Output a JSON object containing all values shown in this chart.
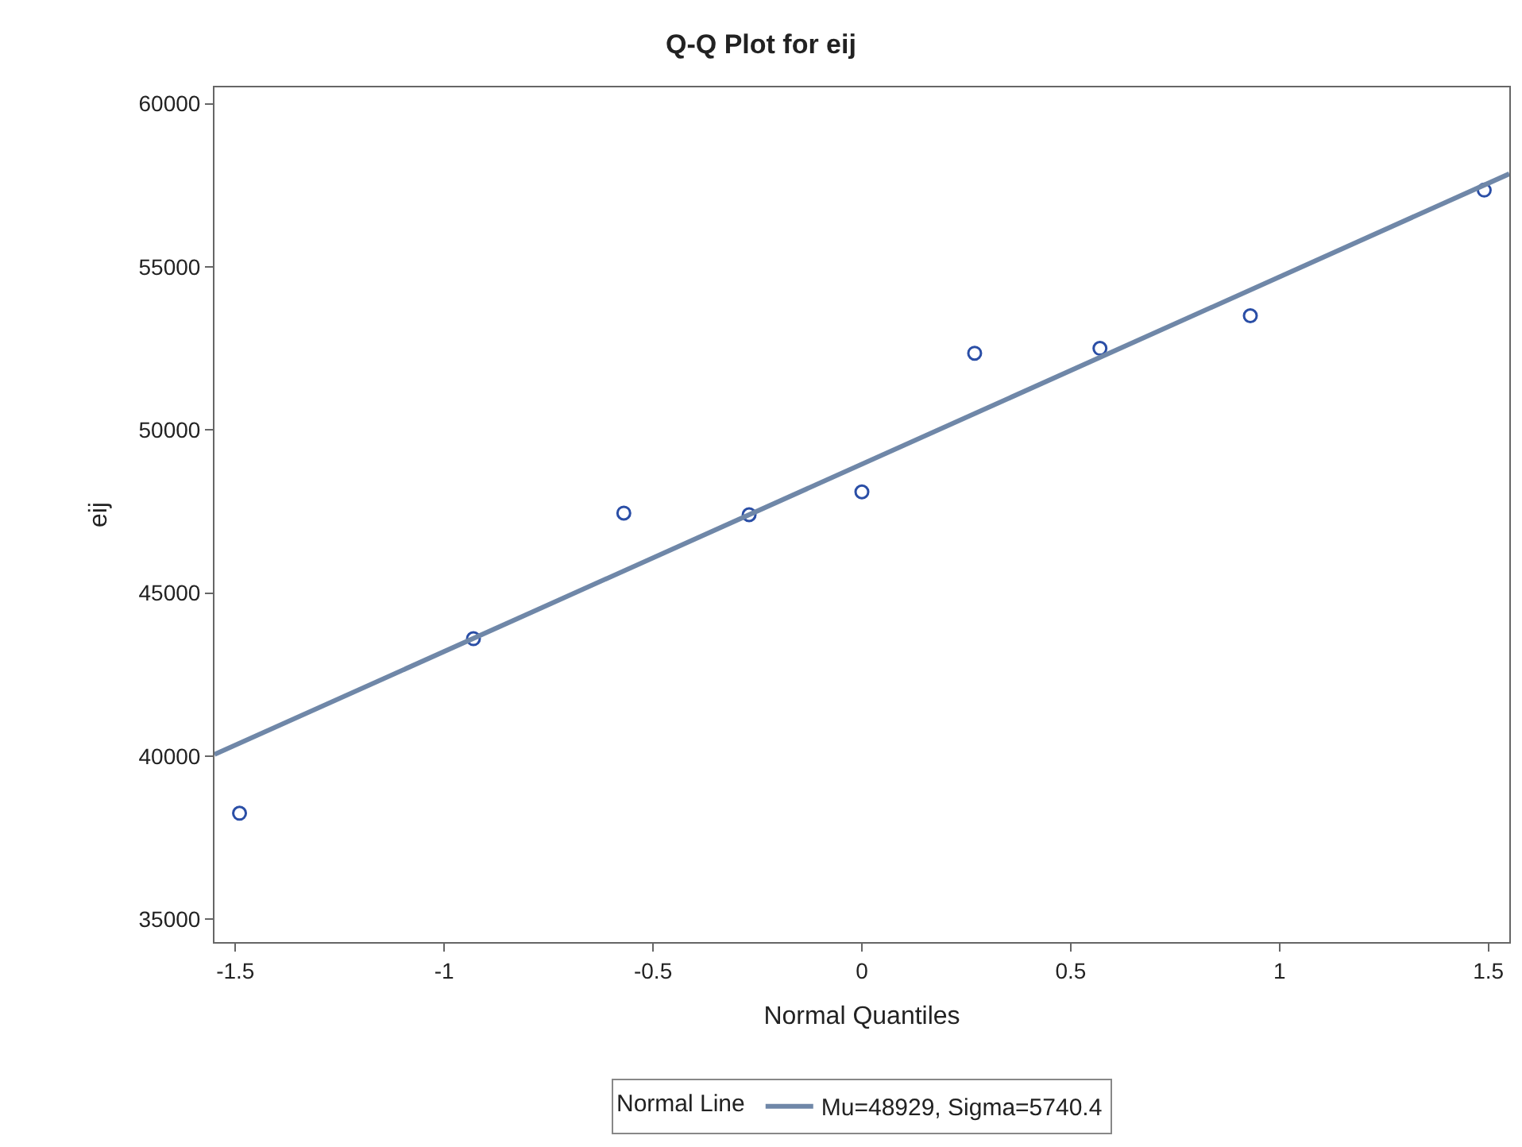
{
  "chart_data": {
    "type": "scatter",
    "title": "Q-Q Plot for eij",
    "xlabel": "Normal Quantiles",
    "ylabel": "eij",
    "legend_title": "Normal Line",
    "series": [
      {
        "color": "#2a4ea6",
        "marker": "circle",
        "x": [
          -1.49,
          -0.93,
          -0.57,
          -0.27,
          0,
          0.27,
          0.57,
          0.93,
          1.49
        ],
        "values": [
          38250,
          43600,
          47450,
          47400,
          48100,
          52350,
          52500,
          53500,
          57350
        ]
      },
      {
        "type": "line",
        "name": "Mu=48929, Sigma=5740.4",
        "color": "#6f87a8",
        "line_style": "solid",
        "x": [
          -1.55,
          1.55
        ],
        "values": [
          40050,
          57850
        ]
      }
    ],
    "xlim": [
      -1.55,
      1.55
    ],
    "xticks": [
      -1.5,
      -1,
      -0.5,
      0,
      0.5,
      1,
      1.5
    ],
    "ylim": [
      34300,
      60500
    ],
    "yticks": [
      35000,
      40000,
      45000,
      50000,
      55000,
      60000
    ],
    "legend": "bottom"
  }
}
